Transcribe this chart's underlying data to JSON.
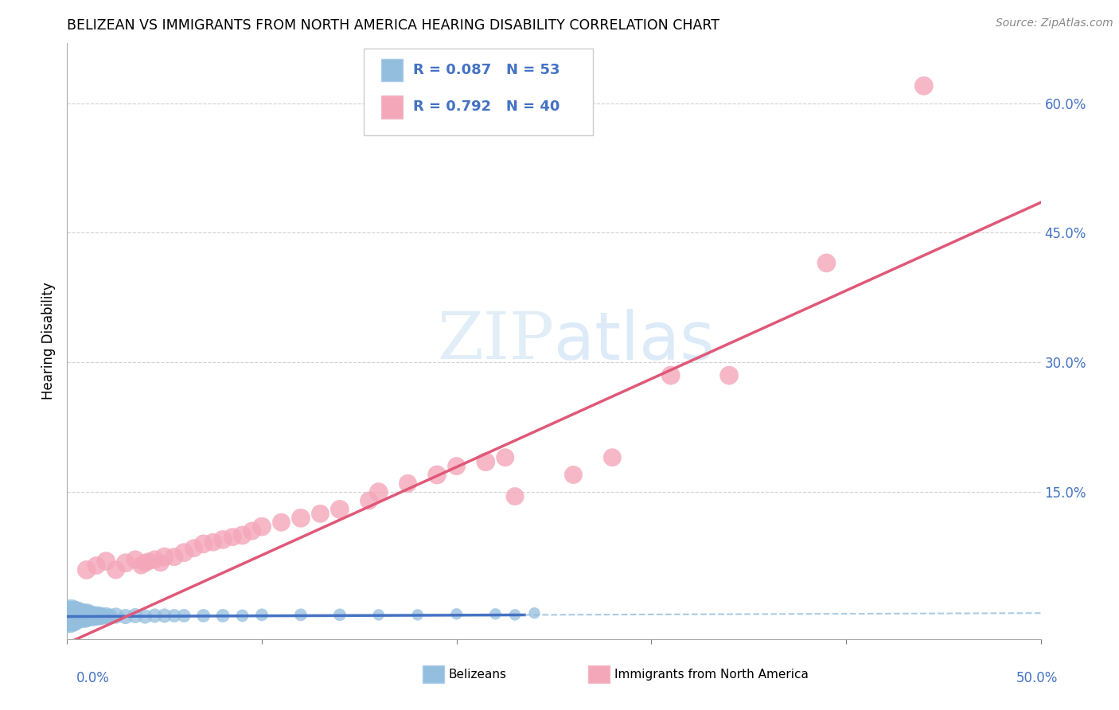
{
  "title": "BELIZEAN VS IMMIGRANTS FROM NORTH AMERICA HEARING DISABILITY CORRELATION CHART",
  "source": "Source: ZipAtlas.com",
  "ylabel": "Hearing Disability",
  "yticks_labels": [
    "15.0%",
    "30.0%",
    "45.0%",
    "60.0%"
  ],
  "ytick_vals": [
    0.15,
    0.3,
    0.45,
    0.6
  ],
  "xlim": [
    0.0,
    0.5
  ],
  "ylim": [
    -0.02,
    0.67
  ],
  "legend_labels": [
    "Belizeans",
    "Immigrants from North America"
  ],
  "R_belizean": 0.087,
  "N_belizean": 53,
  "R_immigrant": 0.792,
  "N_immigrant": 40,
  "color_belizean": "#94bede",
  "color_belizean_line": "#4472c4",
  "color_immigrant": "#f4a7b9",
  "color_immigrant_line": "#e05878",
  "color_blue_text": "#4472c4",
  "watermark_color": "#c8dff0",
  "belizean_x": [
    0.001,
    0.002,
    0.002,
    0.003,
    0.003,
    0.004,
    0.004,
    0.005,
    0.005,
    0.005,
    0.006,
    0.006,
    0.007,
    0.007,
    0.008,
    0.008,
    0.009,
    0.009,
    0.01,
    0.01,
    0.011,
    0.012,
    0.013,
    0.014,
    0.015,
    0.016,
    0.017,
    0.018,
    0.02,
    0.022,
    0.025,
    0.03,
    0.035,
    0.04,
    0.045,
    0.05,
    0.055,
    0.06,
    0.07,
    0.08,
    0.09,
    0.1,
    0.12,
    0.14,
    0.16,
    0.18,
    0.2,
    0.22,
    0.24,
    0.001,
    0.002,
    0.003,
    0.23
  ],
  "belizean_y": [
    0.008,
    0.006,
    0.01,
    0.007,
    0.009,
    0.006,
    0.008,
    0.005,
    0.007,
    0.009,
    0.006,
    0.008,
    0.005,
    0.007,
    0.006,
    0.008,
    0.005,
    0.007,
    0.006,
    0.008,
    0.007,
    0.006,
    0.007,
    0.006,
    0.007,
    0.006,
    0.007,
    0.006,
    0.007,
    0.006,
    0.007,
    0.006,
    0.007,
    0.006,
    0.007,
    0.007,
    0.007,
    0.007,
    0.007,
    0.007,
    0.007,
    0.008,
    0.008,
    0.008,
    0.008,
    0.008,
    0.009,
    0.009,
    0.01,
    0.004,
    0.005,
    0.004,
    0.008
  ],
  "belizean_sizes": [
    60,
    55,
    60,
    50,
    55,
    45,
    50,
    40,
    45,
    50,
    40,
    45,
    35,
    40,
    35,
    40,
    35,
    40,
    35,
    40,
    35,
    30,
    30,
    28,
    28,
    25,
    25,
    22,
    22,
    20,
    20,
    18,
    18,
    16,
    16,
    16,
    14,
    14,
    14,
    14,
    12,
    12,
    12,
    12,
    10,
    10,
    10,
    10,
    10,
    70,
    65,
    55,
    10
  ],
  "immigrant_x": [
    0.01,
    0.015,
    0.02,
    0.025,
    0.03,
    0.035,
    0.038,
    0.04,
    0.042,
    0.045,
    0.048,
    0.05,
    0.055,
    0.06,
    0.065,
    0.07,
    0.075,
    0.08,
    0.085,
    0.09,
    0.095,
    0.1,
    0.11,
    0.12,
    0.13,
    0.14,
    0.155,
    0.16,
    0.175,
    0.19,
    0.2,
    0.215,
    0.225,
    0.23,
    0.26,
    0.28,
    0.31,
    0.34,
    0.39,
    0.44
  ],
  "immigrant_y": [
    0.06,
    0.065,
    0.07,
    0.06,
    0.068,
    0.072,
    0.065,
    0.068,
    0.07,
    0.072,
    0.068,
    0.075,
    0.075,
    0.08,
    0.085,
    0.09,
    0.092,
    0.095,
    0.098,
    0.1,
    0.105,
    0.11,
    0.115,
    0.12,
    0.125,
    0.13,
    0.14,
    0.15,
    0.16,
    0.17,
    0.18,
    0.185,
    0.19,
    0.145,
    0.17,
    0.19,
    0.285,
    0.285,
    0.415,
    0.62
  ],
  "immigrant_sizes": [
    28,
    26,
    28,
    26,
    28,
    26,
    24,
    26,
    24,
    26,
    24,
    28,
    26,
    28,
    26,
    28,
    26,
    28,
    26,
    28,
    26,
    28,
    26,
    28,
    26,
    28,
    26,
    28,
    26,
    28,
    26,
    28,
    26,
    26,
    26,
    26,
    28,
    28,
    28,
    28
  ]
}
